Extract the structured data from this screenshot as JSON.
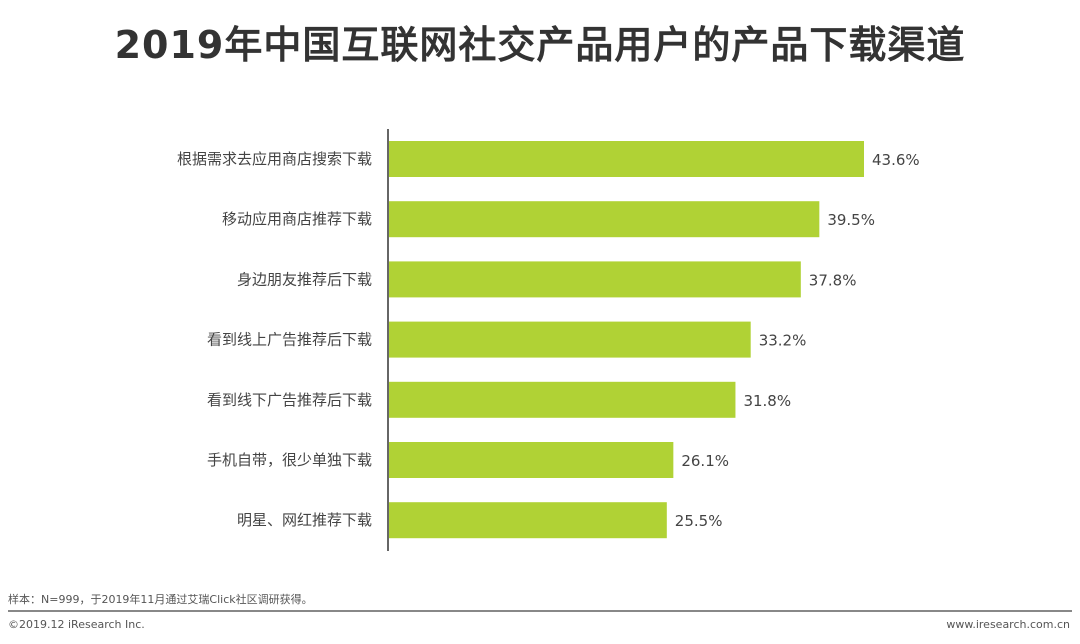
{
  "chart_data": {
    "type": "bar",
    "orientation": "horizontal",
    "title": "2019年中国互联网社交产品用户的产品下载渠道",
    "categories": [
      "根据需求去应用商店搜索下载",
      "移动应用商店推荐下载",
      "身边朋友推荐后下载",
      "看到线上广告推荐后下载",
      "看到线下广告推荐后下载",
      "手机自带，很少单独下载",
      "明星、网红推荐下载"
    ],
    "values": [
      43.6,
      39.5,
      37.8,
      33.2,
      31.8,
      26.1,
      25.5
    ],
    "value_labels": [
      "43.6%",
      "39.5%",
      "37.8%",
      "33.2%",
      "31.8%",
      "26.1%",
      "25.5%"
    ],
    "unit": "%",
    "xlim": [
      0,
      50
    ],
    "grid": false,
    "bar_color": "#b0d235"
  },
  "footer": {
    "note": "样本：N=999，于2019年11月通过艾瑞Click社区调研获得。",
    "copyright": "©2019.12 iResearch Inc.",
    "website": "www.iresearch.com.cn"
  }
}
